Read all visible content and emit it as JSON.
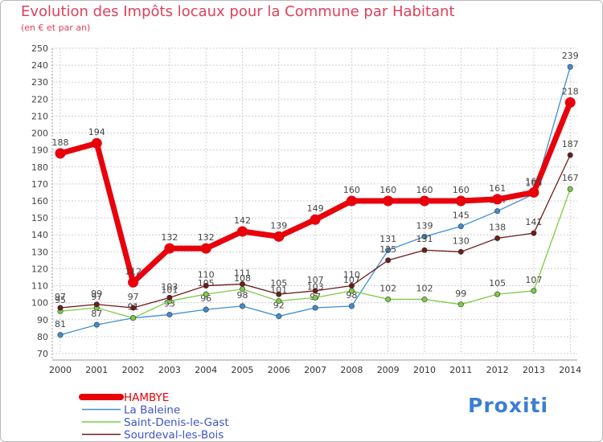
{
  "title": "Evolution des Impôts locaux pour la Commune par Habitant",
  "subtitle": "(en € et par an)",
  "logo": "Proxiti",
  "chart_data": {
    "type": "line",
    "title": "Evolution des Impôts locaux pour la Commune par Habitant",
    "ylabel": "(en € et par an)",
    "xlabel": "",
    "categories": [
      "2000",
      "2001",
      "2002",
      "2003",
      "2004",
      "2005",
      "2006",
      "2007",
      "2008",
      "2009",
      "2010",
      "2011",
      "2012",
      "2013",
      "2014"
    ],
    "ylim": [
      70,
      250
    ],
    "ytick_step": 10,
    "grid": true,
    "legend": "bottom-left",
    "series": [
      {
        "name": "HAMBYE",
        "color": "#e8000b",
        "values": [
          188,
          194,
          112,
          132,
          132,
          142,
          139,
          149,
          160,
          160,
          160,
          160,
          161,
          165,
          218
        ]
      },
      {
        "name": "La Baleine",
        "color": "#3f8ecf",
        "values": [
          81,
          87,
          91,
          93,
          96,
          98,
          92,
          97,
          98,
          131,
          139,
          145,
          154,
          164,
          239
        ]
      },
      {
        "name": "Saint-Denis-le-Gast",
        "color": "#7ccc45",
        "values": [
          95,
          97,
          91,
          101,
          105,
          108,
          101,
          103,
          107,
          102,
          102,
          99,
          105,
          107,
          167
        ]
      },
      {
        "name": "Sourdeval-les-Bois",
        "color": "#6e1c1c",
        "values": [
          97,
          99,
          97,
          103,
          110,
          111,
          105,
          107,
          110,
          125,
          131,
          130,
          138,
          141,
          187
        ]
      }
    ]
  }
}
